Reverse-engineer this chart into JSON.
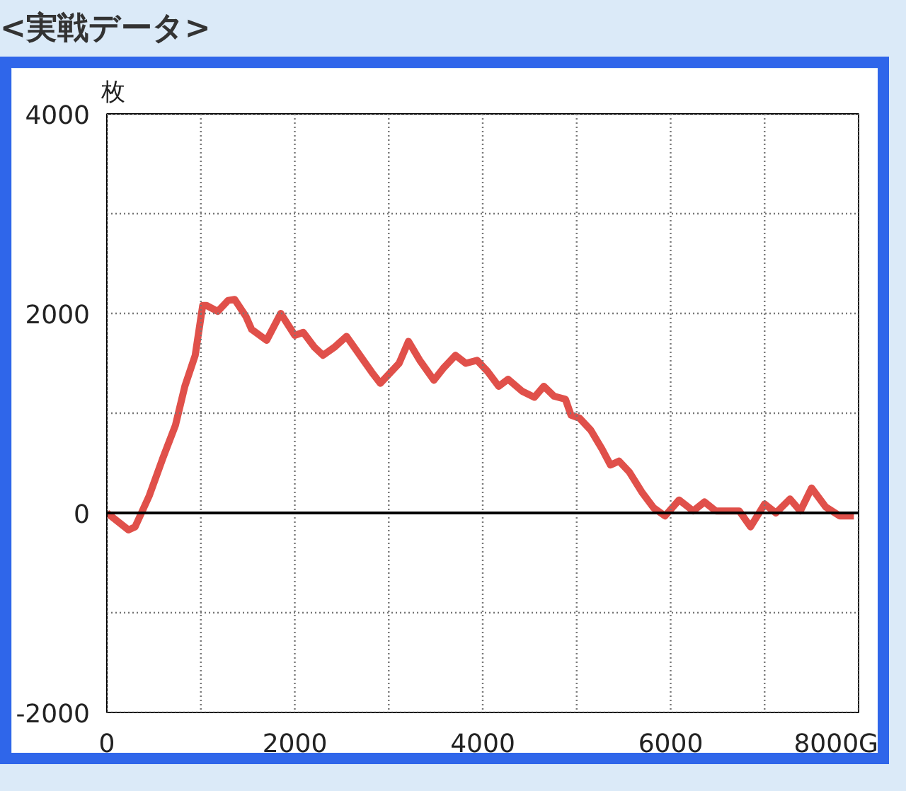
{
  "chart_data": {
    "type": "line",
    "title": "<実戦データ>",
    "ylabel": "枚",
    "x": [
      0,
      230,
      300,
      450,
      600,
      730,
      830,
      940,
      1020,
      1060,
      1180,
      1290,
      1360,
      1480,
      1540,
      1700,
      1850,
      2000,
      2090,
      2210,
      2300,
      2420,
      2550,
      2670,
      2820,
      2910,
      3110,
      3210,
      3330,
      3480,
      3580,
      3710,
      3820,
      3940,
      4050,
      4170,
      4270,
      4420,
      4550,
      4650,
      4760,
      4880,
      4940,
      5030,
      5150,
      5270,
      5360,
      5450,
      5560,
      5700,
      5820,
      5940,
      6090,
      6240,
      6360,
      6480,
      6730,
      6850,
      7000,
      7120,
      7270,
      7380,
      7500,
      7650,
      7800,
      7950
    ],
    "series": [
      {
        "color": "#e0504a",
        "values": [
          0,
          -170,
          -140,
          170,
          560,
          880,
          1270,
          1580,
          2080,
          2080,
          2020,
          2130,
          2140,
          1970,
          1840,
          1730,
          2000,
          1780,
          1810,
          1660,
          1580,
          1660,
          1770,
          1610,
          1410,
          1300,
          1500,
          1720,
          1530,
          1330,
          1450,
          1580,
          1500,
          1530,
          1420,
          1270,
          1340,
          1220,
          1160,
          1270,
          1170,
          1140,
          980,
          950,
          830,
          640,
          480,
          520,
          410,
          200,
          50,
          -30,
          130,
          20,
          110,
          20,
          20,
          -140,
          90,
          0,
          140,
          20,
          250,
          60,
          -30,
          -30
        ]
      }
    ],
    "xlim": [
      0,
      8000
    ],
    "ylim": [
      -2000,
      4000
    ],
    "xticks": [
      0,
      {
        "value": 1000,
        "label": null
      },
      2000,
      {
        "value": 3000,
        "label": null
      },
      4000,
      {
        "value": 5000,
        "label": null
      },
      6000,
      {
        "value": 7000,
        "label": null
      },
      {
        "value": 8000,
        "label": "8000G"
      }
    ],
    "yticks": [
      -2000,
      {
        "value": -1000,
        "label": null
      },
      0,
      {
        "value": 1000,
        "label": null
      },
      2000,
      {
        "value": 3000,
        "label": null
      },
      4000
    ],
    "ref_lines": [
      {
        "axis": "y",
        "value": 0,
        "color": "#000000",
        "line_style": "solid"
      }
    ],
    "grid": true,
    "marker": "none",
    "line_style": "solid"
  }
}
